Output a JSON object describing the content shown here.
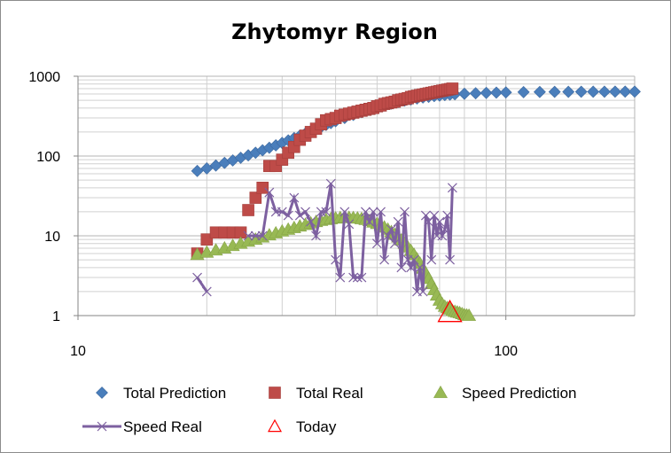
{
  "chart_data": {
    "type": "scatter",
    "title": "Zhytomyr Region",
    "xscale": "log",
    "yscale": "log",
    "xlim": [
      10,
      200
    ],
    "ylim": [
      1,
      1000
    ],
    "x_tick_labels": [
      "10",
      "100"
    ],
    "y_tick_labels": [
      "1",
      "10",
      "100",
      "1000"
    ],
    "grid": true,
    "legend": "bottom",
    "series": [
      {
        "name": "Total Prediction",
        "marker": "diamond",
        "color": "#4a7ebb",
        "x": [
          19,
          20,
          21,
          22,
          23,
          24,
          25,
          26,
          27,
          28,
          29,
          30,
          31,
          32,
          33,
          34,
          35,
          36,
          37,
          38,
          39,
          40,
          42,
          44,
          46,
          48,
          50,
          52,
          54,
          56,
          58,
          60,
          62,
          64,
          66,
          68,
          70,
          72,
          74,
          76,
          80,
          85,
          90,
          95,
          100,
          110,
          120,
          130,
          140,
          150,
          160,
          170,
          180,
          190,
          200
        ],
        "y": [
          65,
          70,
          76,
          82,
          88,
          95,
          102,
          110,
          118,
          127,
          136,
          146,
          157,
          168,
          180,
          192,
          205,
          218,
          231,
          245,
          259,
          273,
          300,
          328,
          355,
          382,
          408,
          432,
          455,
          476,
          495,
          512,
          527,
          541,
          553,
          564,
          573,
          581,
          588,
          594,
          603,
          612,
          618,
          623,
          627,
          632,
          635,
          637,
          638,
          639,
          640,
          640,
          641,
          641,
          641
        ]
      },
      {
        "name": "Total Real",
        "marker": "square",
        "color": "#be4b48",
        "x": [
          19,
          20,
          21,
          22,
          23,
          24,
          25,
          26,
          27,
          28,
          29,
          30,
          31,
          32,
          33,
          34,
          35,
          36,
          37,
          38,
          39,
          40,
          41,
          42,
          43,
          44,
          45,
          46,
          47,
          48,
          49,
          50,
          51,
          52,
          53,
          54,
          55,
          56,
          57,
          58,
          59,
          60,
          61,
          62,
          63,
          64,
          65,
          66,
          67,
          68,
          69,
          70,
          71,
          72,
          73,
          74,
          75
        ],
        "y": [
          6,
          9,
          11,
          11,
          11,
          11,
          21,
          30,
          40,
          75,
          75,
          90,
          110,
          130,
          160,
          180,
          200,
          220,
          250,
          280,
          290,
          300,
          320,
          330,
          340,
          350,
          360,
          370,
          380,
          390,
          400,
          420,
          430,
          450,
          460,
          470,
          480,
          500,
          510,
          520,
          530,
          550,
          560,
          570,
          580,
          590,
          600,
          610,
          620,
          630,
          640,
          650,
          660,
          670,
          680,
          690,
          700
        ]
      },
      {
        "name": "Speed Prediction",
        "marker": "triangle",
        "color": "#98b954",
        "x": [
          19,
          20,
          21,
          22,
          23,
          24,
          25,
          26,
          27,
          28,
          29,
          30,
          31,
          32,
          33,
          34,
          35,
          36,
          37,
          38,
          39,
          40,
          41,
          42,
          43,
          44,
          45,
          46,
          47,
          48,
          49,
          50,
          51,
          52,
          53,
          54,
          55,
          56,
          57,
          58,
          59,
          60,
          61,
          62,
          63,
          64,
          65,
          66,
          67,
          68,
          69,
          70,
          71,
          72,
          73,
          74,
          75,
          76,
          77,
          78,
          79,
          80,
          81,
          82
        ],
        "y": [
          5.8,
          6.2,
          6.6,
          7,
          7.5,
          8,
          8.5,
          9,
          9.6,
          10.2,
          10.8,
          11.4,
          12,
          12.6,
          13.2,
          13.8,
          14.4,
          15,
          15.5,
          15.9,
          16.3,
          16.6,
          16.8,
          16.9,
          16.9,
          16.8,
          16.6,
          16.3,
          15.9,
          15.4,
          14.8,
          14.2,
          13.5,
          12.8,
          12,
          11.2,
          10.4,
          9.6,
          8.8,
          8,
          7.2,
          6.5,
          5.8,
          5.1,
          4.5,
          3.9,
          3.4,
          2.9,
          2.5,
          2.1,
          1.8,
          1.55,
          1.4,
          1.3,
          1.25,
          1.2,
          1.15,
          1.12,
          1.1,
          1.08,
          1.05,
          1.02,
          1.01,
          1
        ]
      },
      {
        "name": "Speed Real",
        "marker": "x",
        "color": "#7d60a0",
        "x": [
          19,
          20,
          21,
          22,
          23,
          24,
          25,
          26,
          27,
          28,
          29,
          30,
          31,
          32,
          33,
          34,
          35,
          36,
          37,
          38,
          39,
          40,
          41,
          42,
          43,
          44,
          45,
          46,
          47,
          48,
          49,
          50,
          51,
          52,
          53,
          54,
          55,
          56,
          57,
          58,
          59,
          60,
          61,
          62,
          63,
          64,
          65,
          66,
          67,
          68,
          69,
          70,
          71,
          72,
          73,
          74,
          75
        ],
        "y": [
          3,
          2,
          null,
          null,
          null,
          null,
          10,
          10,
          10,
          35,
          20,
          20,
          18,
          30,
          18,
          20,
          15,
          10,
          20,
          20,
          45,
          5,
          3,
          20,
          14,
          3,
          3,
          3,
          20,
          15,
          20,
          8,
          20,
          5,
          10,
          12,
          8,
          15,
          4,
          20,
          5,
          4,
          5,
          2,
          4,
          2,
          18,
          15,
          5,
          18,
          10,
          15,
          10,
          12,
          18,
          5,
          40
        ]
      },
      {
        "name": "Today",
        "marker": "open-triangle",
        "color": "#ff0000",
        "x": [
          74
        ],
        "y": [
          1.1
        ]
      }
    ]
  }
}
